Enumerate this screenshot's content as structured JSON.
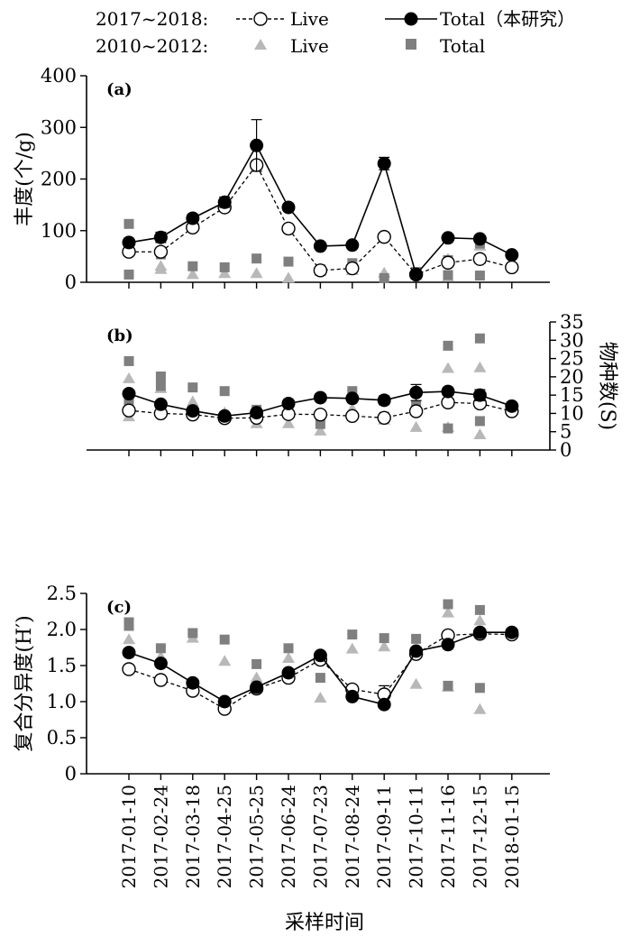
{
  "legend": {
    "row1_period": "2017~2018:",
    "row1_live": "Live",
    "row1_total": "Total（本研究）",
    "row2_period": "2010~2012:",
    "row2_live": "Live",
    "row2_total": "Total"
  },
  "colors": {
    "axis": "#000000",
    "hist_live": "#b8b8b8",
    "hist_total": "#7f7f7f",
    "total_marker": "#000000",
    "live_marker_fill": "#ffffff"
  },
  "x_axis_title": "采样时间",
  "chart_data": [
    {
      "type": "line",
      "panel_label": "(a)",
      "ylabel": "丰度(个/g)",
      "ylim": [
        0,
        400
      ],
      "yticks": [
        0,
        100,
        200,
        300,
        400
      ],
      "y_axis_side": "left",
      "categories": [
        "2017-01-10",
        "2017-02-24",
        "2017-03-18",
        "2017-04-25",
        "2017-05-25",
        "2017-06-24",
        "2017-07-23",
        "2017-08-24",
        "2017-09-11",
        "2017-10-11",
        "2017-11-16",
        "2017-12-15",
        "2018-01-15"
      ],
      "series": [
        {
          "name": "Total 2017~2018",
          "style": "solid-filled-circle",
          "values": [
            77,
            87,
            124,
            155,
            265,
            145,
            70,
            72,
            230,
            15,
            86,
            84,
            53
          ],
          "errors": [
            8,
            10,
            8,
            10,
            50,
            7,
            5,
            5,
            12,
            4,
            5,
            5,
            4
          ]
        },
        {
          "name": "Live 2017~2018",
          "style": "dashed-open-circle",
          "values": [
            59,
            59,
            106,
            145,
            227,
            104,
            23,
            27,
            88,
            15,
            38,
            45,
            29
          ],
          "errors": [
            6,
            6,
            5,
            8,
            8,
            5,
            4,
            4,
            6,
            3,
            3,
            8,
            3
          ]
        },
        {
          "name": "Live 2010~2012",
          "style": "triangle",
          "points": [
            [
              0,
              72
            ],
            [
              1,
              31
            ],
            [
              1,
              25
            ],
            [
              2,
              15
            ],
            [
              3,
              17
            ],
            [
              4,
              17
            ],
            [
              5,
              8
            ],
            [
              6,
              21
            ],
            [
              7,
              23
            ],
            [
              8,
              18
            ],
            [
              9,
              14
            ],
            [
              10,
              10
            ],
            [
              10,
              45
            ],
            [
              11,
              70
            ],
            [
              11,
              45
            ]
          ]
        },
        {
          "name": "Total 2010~2012",
          "style": "square",
          "points": [
            [
              0,
              113
            ],
            [
              0,
              15
            ],
            [
              1,
              54
            ],
            [
              2,
              31
            ],
            [
              3,
              29
            ],
            [
              4,
              46
            ],
            [
              5,
              40
            ],
            [
              6,
              25
            ],
            [
              7,
              37
            ],
            [
              8,
              8
            ],
            [
              9,
              20
            ],
            [
              10,
              14
            ],
            [
              10,
              43
            ],
            [
              11,
              75
            ],
            [
              11,
              13
            ]
          ]
        }
      ]
    },
    {
      "type": "line",
      "panel_label": "(b)",
      "ylabel": "物种数(S)",
      "ylim": [
        0,
        35
      ],
      "yticks": [
        0,
        5,
        10,
        15,
        20,
        25,
        30,
        35
      ],
      "y_axis_side": "right",
      "categories": [
        "2017-01-10",
        "2017-02-24",
        "2017-03-18",
        "2017-04-25",
        "2017-05-25",
        "2017-06-24",
        "2017-07-23",
        "2017-08-24",
        "2017-09-11",
        "2017-10-11",
        "2017-11-16",
        "2017-12-15",
        "2018-01-15"
      ],
      "series": [
        {
          "name": "Total 2017~2018",
          "style": "solid-filled-circle",
          "values": [
            15.4,
            12.5,
            10.7,
            9.3,
            10.2,
            12.7,
            14.3,
            14.1,
            13.6,
            15.7,
            16.0,
            15.0,
            12.0
          ],
          "errors": [
            0.8,
            1.0,
            0.6,
            0.6,
            0.8,
            1.0,
            1.0,
            0.8,
            1.2,
            2.2,
            1.0,
            1.5,
            0.5
          ]
        },
        {
          "name": "Live 2017~2018",
          "style": "dashed-open-circle",
          "values": [
            10.8,
            10.0,
            9.7,
            8.7,
            8.8,
            9.8,
            9.7,
            9.3,
            8.8,
            10.6,
            13.0,
            12.7,
            10.6
          ],
          "errors": [
            0.6,
            0.4,
            0.3,
            0.3,
            0.3,
            0.5,
            0.4,
            0.5,
            0.3,
            0.6,
            0.5,
            0.8,
            0.3
          ]
        },
        {
          "name": "Live 2010~2012",
          "style": "triangle",
          "points": [
            [
              0,
              19.5
            ],
            [
              0,
              9.1
            ],
            [
              1,
              16.8
            ],
            [
              1,
              12.5
            ],
            [
              2,
              13.2
            ],
            [
              3,
              10.2
            ],
            [
              4,
              7.2
            ],
            [
              5,
              7.2
            ],
            [
              6,
              5.2
            ],
            [
              7,
              11.2
            ],
            [
              8,
              8.2
            ],
            [
              9,
              6.2
            ],
            [
              10,
              22.3
            ],
            [
              10,
              6.2
            ],
            [
              11,
              22.5
            ],
            [
              11,
              4.2
            ]
          ]
        },
        {
          "name": "Total 2010~2012",
          "style": "square",
          "points": [
            [
              0,
              24.3
            ],
            [
              0,
              13.2
            ],
            [
              1,
              20.1
            ],
            [
              1,
              17.5
            ],
            [
              2,
              17.1
            ],
            [
              3,
              16.1
            ],
            [
              4,
              11.0
            ],
            [
              5,
              11.2
            ],
            [
              6,
              7.1
            ],
            [
              7,
              16.1
            ],
            [
              8,
              9.1
            ],
            [
              9,
              12.1
            ],
            [
              10,
              28.5
            ],
            [
              10,
              5.9
            ],
            [
              11,
              30.5
            ],
            [
              11,
              7.9
            ]
          ]
        }
      ]
    },
    {
      "type": "line",
      "panel_label": "(c)",
      "ylabel": "复合分异度(H′)",
      "ylim": [
        0,
        2.5
      ],
      "yticks": [
        0,
        0.5,
        1.0,
        1.5,
        2.0,
        2.5
      ],
      "ytick_labels": [
        "0",
        "0.5",
        "1.0",
        "1.5",
        "2.0",
        "2.5"
      ],
      "y_axis_side": "left",
      "categories": [
        "2017-01-10",
        "2017-02-24",
        "2017-03-18",
        "2017-04-25",
        "2017-05-25",
        "2017-06-24",
        "2017-07-23",
        "2017-08-24",
        "2017-09-11",
        "2017-10-11",
        "2017-11-16",
        "2017-12-15",
        "2018-01-15"
      ],
      "series": [
        {
          "name": "Total 2017~2018",
          "style": "solid-filled-circle",
          "values": [
            1.68,
            1.53,
            1.26,
            1.0,
            1.2,
            1.4,
            1.64,
            1.07,
            0.96,
            1.7,
            1.79,
            1.96,
            1.96
          ],
          "errors": [
            0.04,
            0.05,
            0.03,
            0.03,
            0.04,
            0.04,
            0.03,
            0.04,
            0.04,
            0.05,
            0.04,
            0.04,
            0.03
          ]
        },
        {
          "name": "Live 2017~2018",
          "style": "dashed-open-circle",
          "values": [
            1.45,
            1.3,
            1.15,
            0.9,
            1.18,
            1.33,
            1.58,
            1.17,
            1.1,
            1.66,
            1.92,
            1.94,
            1.93
          ],
          "errors": [
            0.04,
            0.04,
            0.03,
            0.03,
            0.04,
            0.04,
            0.04,
            0.05,
            0.12,
            0.05,
            0.04,
            0.04,
            0.03
          ]
        },
        {
          "name": "Live 2010~2012",
          "style": "triangle",
          "points": [
            [
              0,
              1.86
            ],
            [
              1,
              1.62
            ],
            [
              2,
              1.88
            ],
            [
              3,
              1.56
            ],
            [
              4,
              1.33
            ],
            [
              5,
              1.6
            ],
            [
              6,
              1.05
            ],
            [
              7,
              1.73
            ],
            [
              8,
              1.76
            ],
            [
              9,
              1.24
            ],
            [
              10,
              2.23
            ],
            [
              10,
              1.2
            ],
            [
              11,
              2.12
            ],
            [
              11,
              0.89
            ]
          ]
        },
        {
          "name": "Total 2010~2012",
          "style": "square",
          "points": [
            [
              0,
              2.1
            ],
            [
              0,
              2.05
            ],
            [
              1,
              1.74
            ],
            [
              2,
              1.95
            ],
            [
              3,
              1.86
            ],
            [
              4,
              1.52
            ],
            [
              5,
              1.74
            ],
            [
              6,
              1.33
            ],
            [
              7,
              1.93
            ],
            [
              8,
              1.88
            ],
            [
              9,
              1.87
            ],
            [
              10,
              2.35
            ],
            [
              10,
              1.22
            ],
            [
              11,
              2.27
            ],
            [
              11,
              1.19
            ]
          ]
        }
      ]
    }
  ]
}
